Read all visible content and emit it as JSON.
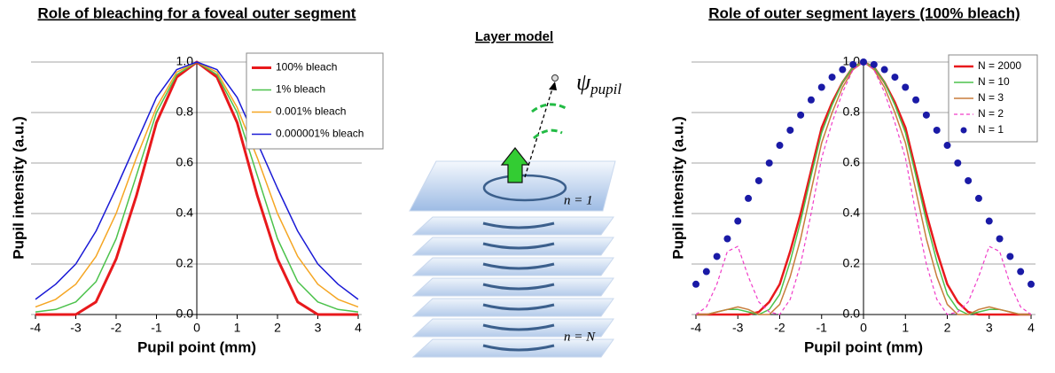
{
  "chart_data": [
    {
      "type": "line",
      "title": "Role of bleaching for a foveal outer segment",
      "xlabel": "Pupil point (mm)",
      "ylabel": "Pupil intensity (a.u.)",
      "x": [
        -4,
        -3.5,
        -3,
        -2.5,
        -2,
        -1.5,
        -1,
        -0.5,
        0,
        0.5,
        1,
        1.5,
        2,
        2.5,
        3,
        3.5,
        4
      ],
      "series": [
        {
          "name": "100% bleach",
          "color": "#e8191c",
          "linewidth": 3,
          "values": [
            0,
            0,
            0,
            0.05,
            0.22,
            0.47,
            0.76,
            0.94,
            1,
            0.94,
            0.76,
            0.47,
            0.22,
            0.05,
            0,
            0,
            0
          ]
        },
        {
          "name": "1% bleach",
          "color": "#4cc24c",
          "linewidth": 1.5,
          "values": [
            0.01,
            0.02,
            0.05,
            0.13,
            0.3,
            0.55,
            0.8,
            0.95,
            1,
            0.95,
            0.8,
            0.55,
            0.3,
            0.13,
            0.05,
            0.02,
            0.01
          ]
        },
        {
          "name": "0.001% bleach",
          "color": "#f5a623",
          "linewidth": 1.5,
          "values": [
            0.03,
            0.06,
            0.12,
            0.23,
            0.4,
            0.62,
            0.82,
            0.96,
            1,
            0.96,
            0.82,
            0.62,
            0.4,
            0.23,
            0.12,
            0.06,
            0.03
          ]
        },
        {
          "name": "0.000001% bleach",
          "color": "#1a1ad6",
          "linewidth": 1.5,
          "values": [
            0.06,
            0.12,
            0.2,
            0.33,
            0.5,
            0.68,
            0.86,
            0.97,
            1,
            0.97,
            0.86,
            0.68,
            0.5,
            0.33,
            0.2,
            0.12,
            0.06
          ]
        }
      ],
      "xlim": [
        -4,
        4
      ],
      "ylim": [
        0,
        1
      ],
      "xticks": [
        -4,
        -3,
        -2,
        -1,
        0,
        1,
        2,
        3,
        4
      ],
      "yticks": [
        {
          "value": 0,
          "label": "0.0"
        },
        {
          "value": 0.2,
          "label": "0.2"
        },
        {
          "value": 0.4,
          "label": "0.4"
        },
        {
          "value": 0.6,
          "label": "0.6"
        },
        {
          "value": 0.8,
          "label": "0.8"
        },
        {
          "value": 1,
          "label": "1.0"
        }
      ],
      "y_axis_position": 0,
      "grid": true,
      "legend": "upper right"
    },
    {
      "type": "line",
      "title": "Role of outer segment layers (100% bleach)",
      "xlabel": "Pupil point (mm)",
      "ylabel": "Pupil intensity (a.u.)",
      "x": [
        -4,
        -3.75,
        -3.5,
        -3.25,
        -3,
        -2.75,
        -2.5,
        -2.25,
        -2,
        -1.75,
        -1.5,
        -1.25,
        -1,
        -0.75,
        -0.5,
        -0.25,
        0,
        0.25,
        0.5,
        0.75,
        1,
        1.25,
        1.5,
        1.75,
        2,
        2.25,
        2.5,
        2.75,
        3,
        3.25,
        3.5,
        3.75,
        4
      ],
      "series": [
        {
          "name": "N = 2000",
          "color": "#e8191c",
          "linewidth": 2.5,
          "values": [
            0,
            0,
            0,
            0,
            0,
            0,
            0.01,
            0.05,
            0.12,
            0.25,
            0.4,
            0.57,
            0.74,
            0.84,
            0.92,
            0.98,
            1,
            0.98,
            0.92,
            0.84,
            0.74,
            0.57,
            0.4,
            0.25,
            0.12,
            0.05,
            0.01,
            0,
            0,
            0,
            0,
            0,
            0
          ]
        },
        {
          "name": "N = 10",
          "color": "#4cc24c",
          "linewidth": 1.5,
          "values": [
            0,
            0,
            0.01,
            0.02,
            0.02,
            0.01,
            0,
            0.02,
            0.08,
            0.21,
            0.37,
            0.55,
            0.72,
            0.83,
            0.92,
            0.98,
            1,
            0.98,
            0.92,
            0.83,
            0.72,
            0.55,
            0.37,
            0.21,
            0.08,
            0.02,
            0,
            0.01,
            0.02,
            0.02,
            0.01,
            0,
            0
          ]
        },
        {
          "name": "N = 3",
          "color": "#c87d3c",
          "linewidth": 1.5,
          "values": [
            0,
            0,
            0.01,
            0.02,
            0.03,
            0.02,
            0,
            0,
            0.04,
            0.15,
            0.3,
            0.49,
            0.68,
            0.8,
            0.9,
            0.97,
            1,
            0.97,
            0.9,
            0.8,
            0.68,
            0.49,
            0.3,
            0.15,
            0.04,
            0,
            0,
            0.02,
            0.03,
            0.02,
            0.01,
            0,
            0
          ]
        },
        {
          "name": "N = 2",
          "color": "#f03cc8",
          "linewidth": 1.2,
          "style": "dashed",
          "values": [
            0,
            0.03,
            0.12,
            0.25,
            0.27,
            0.15,
            0.05,
            0.01,
            0,
            0.06,
            0.2,
            0.4,
            0.62,
            0.76,
            0.88,
            0.97,
            1,
            0.97,
            0.88,
            0.76,
            0.62,
            0.4,
            0.2,
            0.06,
            0,
            0.01,
            0.05,
            0.15,
            0.27,
            0.25,
            0.12,
            0.03,
            0
          ]
        },
        {
          "name": "N = 1",
          "color": "#1a1aa6",
          "style": "markers",
          "values": [
            0.12,
            0.17,
            0.23,
            0.3,
            0.37,
            0.46,
            0.53,
            0.6,
            0.67,
            0.73,
            0.79,
            0.85,
            0.9,
            0.94,
            0.97,
            0.99,
            1,
            0.99,
            0.97,
            0.94,
            0.9,
            0.85,
            0.79,
            0.73,
            0.67,
            0.6,
            0.53,
            0.46,
            0.37,
            0.3,
            0.23,
            0.17,
            0.12
          ]
        }
      ],
      "xlim": [
        -4,
        4
      ],
      "ylim": [
        0,
        1
      ],
      "xticks": [
        -4,
        -3,
        -2,
        -1,
        0,
        1,
        2,
        3,
        4
      ],
      "yticks": [
        {
          "value": 0,
          "label": "0.0"
        },
        {
          "value": 0.2,
          "label": "0.2"
        },
        {
          "value": 0.4,
          "label": "0.4"
        },
        {
          "value": 0.6,
          "label": "0.6"
        },
        {
          "value": 0.8,
          "label": "0.8"
        },
        {
          "value": 1,
          "label": "1.0"
        }
      ],
      "y_axis_position": 0,
      "grid": true,
      "legend": "upper right"
    }
  ],
  "diagram": {
    "title": "Layer model",
    "psi_symbol": "ψ",
    "psi_subscript": "pupil",
    "top_layer_label": "n = 1",
    "bottom_layer_label": "n = N"
  }
}
